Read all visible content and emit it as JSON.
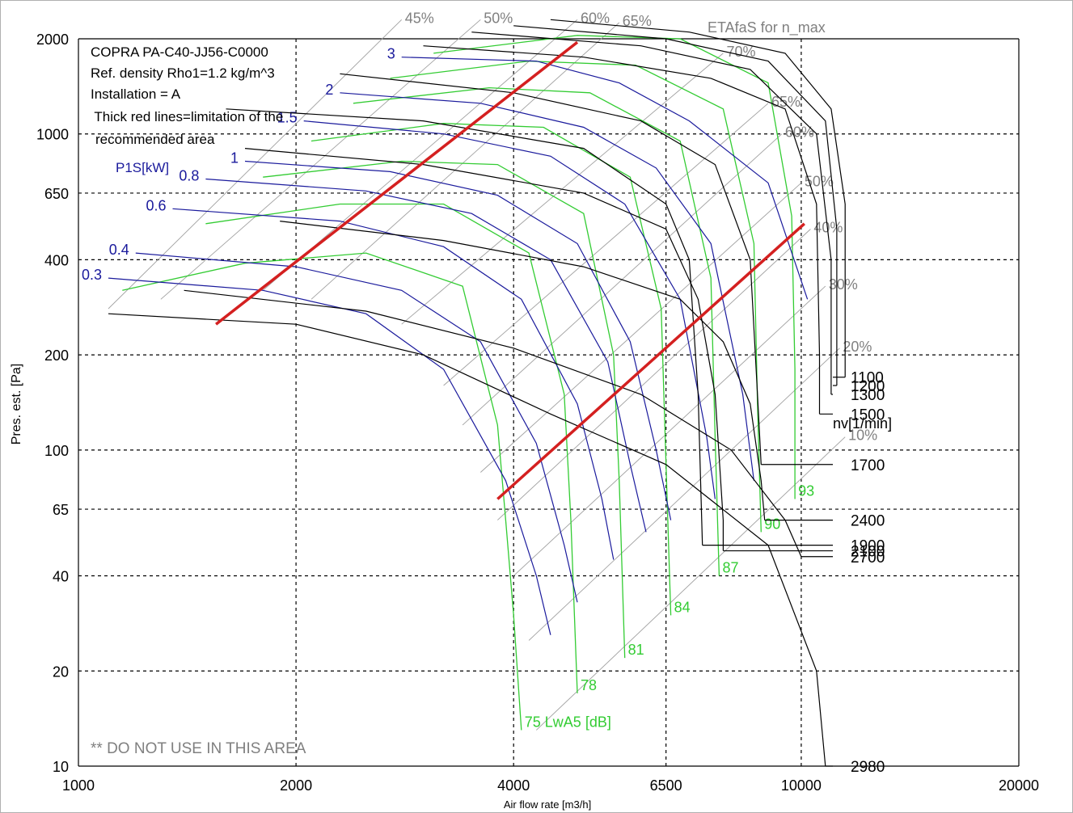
{
  "chart_data": {
    "type": "line",
    "title": "",
    "xlabel": "Air flow rate [m3/h]",
    "ylabel": "Pres. est. [Pa]",
    "x_scale": "log",
    "y_scale": "log",
    "xlim": [
      1000,
      20000
    ],
    "ylim": [
      10,
      2000
    ],
    "x_ticks": [
      1000,
      2000,
      4000,
      6500,
      10000,
      20000
    ],
    "y_ticks": [
      10,
      20,
      40,
      65,
      100,
      200,
      400,
      650,
      1000,
      2000
    ],
    "grid": true,
    "info_text": [
      "COPRA PA-C40-JJ56-C0000",
      "Ref. density Rho1=1.2 kg/m^3",
      "Installation = A",
      " Thick red lines=limitation of the",
      "recommended area"
    ],
    "warning_text": "** DO NOT USE IN THIS AREA",
    "speed_header": "nv[1/min]",
    "power_header": "P1S[kW]",
    "eta_header": "ETAfaS for n_max",
    "noise_unit": "75 LwA5 [dB]",
    "colors": {
      "speed_curves": "#000000",
      "power_curves": "#1a1a9c",
      "noise_curves": "#33cc33",
      "efficiency_lines": "#a0a0a0",
      "limit_lines": "#d42020",
      "grid": "#000000"
    },
    "speed_curves": [
      {
        "label": "2980",
        "points": [
          [
            1100,
            270
          ],
          [
            2000,
            250
          ],
          [
            3000,
            200
          ],
          [
            4500,
            130
          ],
          [
            6500,
            90
          ],
          [
            9000,
            50
          ],
          [
            10500,
            20
          ],
          [
            10800,
            10
          ]
        ]
      },
      {
        "label": "2700",
        "points": [
          [
            1400,
            320
          ],
          [
            2500,
            275
          ],
          [
            4000,
            210
          ],
          [
            6000,
            150
          ],
          [
            8000,
            100
          ],
          [
            9500,
            60
          ],
          [
            10000,
            46
          ]
        ]
      },
      {
        "label": "2400",
        "points": [
          [
            1900,
            530
          ],
          [
            3200,
            460
          ],
          [
            5000,
            380
          ],
          [
            6800,
            300
          ],
          [
            7800,
            220
          ],
          [
            8500,
            140
          ],
          [
            8800,
            80
          ],
          [
            8900,
            60
          ]
        ]
      },
      {
        "label": "2100",
        "points": [
          [
            1700,
            900
          ],
          [
            3000,
            800
          ],
          [
            5000,
            650
          ],
          [
            6500,
            500
          ],
          [
            7200,
            300
          ],
          [
            7600,
            150
          ],
          [
            7800,
            60
          ],
          [
            7800,
            48
          ]
        ]
      },
      {
        "label": "1900",
        "points": [
          [
            1600,
            1200
          ],
          [
            3000,
            1100
          ],
          [
            5000,
            900
          ],
          [
            6500,
            600
          ],
          [
            7000,
            400
          ],
          [
            7200,
            150
          ],
          [
            7300,
            50
          ]
        ]
      },
      {
        "label": "1700",
        "points": [
          [
            2300,
            1550
          ],
          [
            4000,
            1350
          ],
          [
            6000,
            1100
          ],
          [
            7600,
            800
          ],
          [
            8500,
            400
          ],
          [
            8700,
            150
          ],
          [
            8800,
            90
          ]
        ]
      },
      {
        "label": "1500",
        "points": [
          [
            3000,
            1900
          ],
          [
            5000,
            1750
          ],
          [
            7500,
            1500
          ],
          [
            9500,
            1200
          ],
          [
            10500,
            600
          ],
          [
            10600,
            200
          ],
          [
            10600,
            130
          ]
        ]
      },
      {
        "label": "1300",
        "points": [
          [
            3500,
            2100
          ],
          [
            6000,
            1900
          ],
          [
            8500,
            1600
          ],
          [
            10500,
            1000
          ],
          [
            11000,
            400
          ],
          [
            11000,
            150
          ]
        ]
      },
      {
        "label": "1200",
        "points": [
          [
            4000,
            2200
          ],
          [
            6500,
            2000
          ],
          [
            9000,
            1700
          ],
          [
            10800,
            1100
          ],
          [
            11200,
            500
          ],
          [
            11200,
            160
          ]
        ]
      },
      {
        "label": "1100",
        "points": [
          [
            4500,
            2300
          ],
          [
            7000,
            2100
          ],
          [
            9500,
            1800
          ],
          [
            11000,
            1200
          ],
          [
            11500,
            600
          ],
          [
            11500,
            170
          ]
        ]
      }
    ],
    "power_curves": [
      {
        "label": "3",
        "points": [
          [
            2800,
            1750
          ],
          [
            4300,
            1700
          ],
          [
            5600,
            1450
          ],
          [
            7000,
            1100
          ],
          [
            9000,
            700
          ],
          [
            10200,
            300
          ]
        ]
      },
      {
        "label": "2",
        "points": [
          [
            2300,
            1350
          ],
          [
            3600,
            1250
          ],
          [
            5000,
            1050
          ],
          [
            6300,
            780
          ],
          [
            7500,
            450
          ],
          [
            8300,
            150
          ],
          [
            8600,
            80
          ]
        ]
      },
      {
        "label": "1.5",
        "points": [
          [
            2050,
            1100
          ],
          [
            3200,
            1000
          ],
          [
            4500,
            850
          ],
          [
            5700,
            600
          ],
          [
            6800,
            300
          ],
          [
            7400,
            110
          ],
          [
            7600,
            70
          ]
        ]
      },
      {
        "label": "1",
        "points": [
          [
            1700,
            820
          ],
          [
            2700,
            760
          ],
          [
            3800,
            640
          ],
          [
            4900,
            450
          ],
          [
            5800,
            220
          ],
          [
            6300,
            100
          ],
          [
            6600,
            60
          ]
        ]
      },
      {
        "label": "0.8",
        "points": [
          [
            1500,
            720
          ],
          [
            2500,
            660
          ],
          [
            3500,
            560
          ],
          [
            4500,
            400
          ],
          [
            5400,
            190
          ],
          [
            5800,
            90
          ],
          [
            6100,
            55
          ]
        ]
      },
      {
        "label": "0.6",
        "points": [
          [
            1350,
            580
          ],
          [
            2300,
            530
          ],
          [
            3200,
            440
          ],
          [
            4100,
            300
          ],
          [
            4900,
            140
          ],
          [
            5300,
            70
          ],
          [
            5500,
            45
          ]
        ]
      },
      {
        "label": "0.4",
        "points": [
          [
            1200,
            420
          ],
          [
            2000,
            380
          ],
          [
            2800,
            320
          ],
          [
            3600,
            220
          ],
          [
            4300,
            105
          ],
          [
            4700,
            50
          ],
          [
            4900,
            33
          ]
        ]
      },
      {
        "label": "0.3",
        "points": [
          [
            1100,
            350
          ],
          [
            1800,
            320
          ],
          [
            2500,
            270
          ],
          [
            3200,
            180
          ],
          [
            3900,
            80
          ],
          [
            4300,
            40
          ],
          [
            4500,
            26
          ]
        ]
      }
    ],
    "noise_curves": [
      {
        "label": "75",
        "points": [
          [
            1150,
            320
          ],
          [
            1700,
            390
          ],
          [
            2500,
            420
          ],
          [
            3400,
            330
          ],
          [
            3800,
            120
          ],
          [
            3900,
            60
          ],
          [
            4000,
            30
          ],
          [
            4100,
            13
          ]
        ]
      },
      {
        "label": "78",
        "points": [
          [
            1500,
            520
          ],
          [
            2300,
            600
          ],
          [
            3200,
            600
          ],
          [
            4200,
            420
          ],
          [
            4700,
            150
          ],
          [
            4800,
            60
          ],
          [
            4900,
            17
          ]
        ]
      },
      {
        "label": "81",
        "points": [
          [
            1800,
            730
          ],
          [
            2800,
            820
          ],
          [
            3800,
            800
          ],
          [
            5000,
            560
          ],
          [
            5500,
            200
          ],
          [
            5600,
            80
          ],
          [
            5700,
            22
          ]
        ]
      },
      {
        "label": "84",
        "points": [
          [
            2100,
            950
          ],
          [
            3200,
            1080
          ],
          [
            4400,
            1050
          ],
          [
            5800,
            730
          ],
          [
            6400,
            280
          ],
          [
            6500,
            90
          ],
          [
            6600,
            30
          ]
        ]
      },
      {
        "label": "87",
        "points": [
          [
            2400,
            1250
          ],
          [
            3700,
            1400
          ],
          [
            5100,
            1350
          ],
          [
            6800,
            950
          ],
          [
            7500,
            350
          ],
          [
            7600,
            110
          ],
          [
            7700,
            40
          ]
        ]
      },
      {
        "label": "90",
        "points": [
          [
            2700,
            1500
          ],
          [
            4200,
            1700
          ],
          [
            5900,
            1650
          ],
          [
            7800,
            1200
          ],
          [
            8600,
            450
          ],
          [
            8700,
            140
          ],
          [
            8800,
            55
          ]
        ]
      },
      {
        "label": "93",
        "points": [
          [
            3100,
            1800
          ],
          [
            4900,
            2050
          ],
          [
            6800,
            2000
          ],
          [
            9000,
            1450
          ],
          [
            9700,
            550
          ],
          [
            9800,
            180
          ],
          [
            9800,
            70
          ]
        ]
      }
    ],
    "efficiency_lines": [
      {
        "label": "45%",
        "points": [
          [
            2800,
            2300
          ],
          [
            1100,
            280
          ]
        ]
      },
      {
        "label": "50%",
        "points": [
          [
            3600,
            2300
          ],
          [
            1300,
            300
          ]
        ]
      },
      {
        "label": "60%",
        "points": [
          [
            4900,
            2300
          ],
          [
            1800,
            320
          ]
        ]
      },
      {
        "label": "65%",
        "points": [
          [
            5600,
            2250
          ],
          [
            2100,
            300
          ]
        ]
      },
      {
        "label": "70%",
        "points": [
          [
            7800,
            1800
          ],
          [
            2800,
            250
          ]
        ]
      },
      {
        "label": "65%",
        "points": [
          [
            9000,
            1250
          ],
          [
            3200,
            160
          ]
        ]
      },
      {
        "label": "60%",
        "points": [
          [
            9400,
            1000
          ],
          [
            3400,
            120
          ]
        ]
      },
      {
        "label": "50%",
        "points": [
          [
            10000,
            700
          ],
          [
            3600,
            85
          ]
        ]
      },
      {
        "label": "40%",
        "points": [
          [
            10300,
            500
          ],
          [
            3800,
            60
          ]
        ]
      },
      {
        "label": "30%",
        "points": [
          [
            10800,
            330
          ],
          [
            4000,
            40
          ]
        ]
      },
      {
        "label": "20%",
        "points": [
          [
            11300,
            210
          ],
          [
            4200,
            25
          ]
        ]
      },
      {
        "label": "10%",
        "points": [
          [
            11500,
            110
          ],
          [
            4300,
            13
          ]
        ]
      }
    ],
    "limit_lines": [
      {
        "points": [
          [
            1550,
            250
          ],
          [
            4900,
            1950
          ]
        ]
      },
      {
        "points": [
          [
            3800,
            70
          ],
          [
            10100,
            520
          ]
        ]
      }
    ]
  }
}
